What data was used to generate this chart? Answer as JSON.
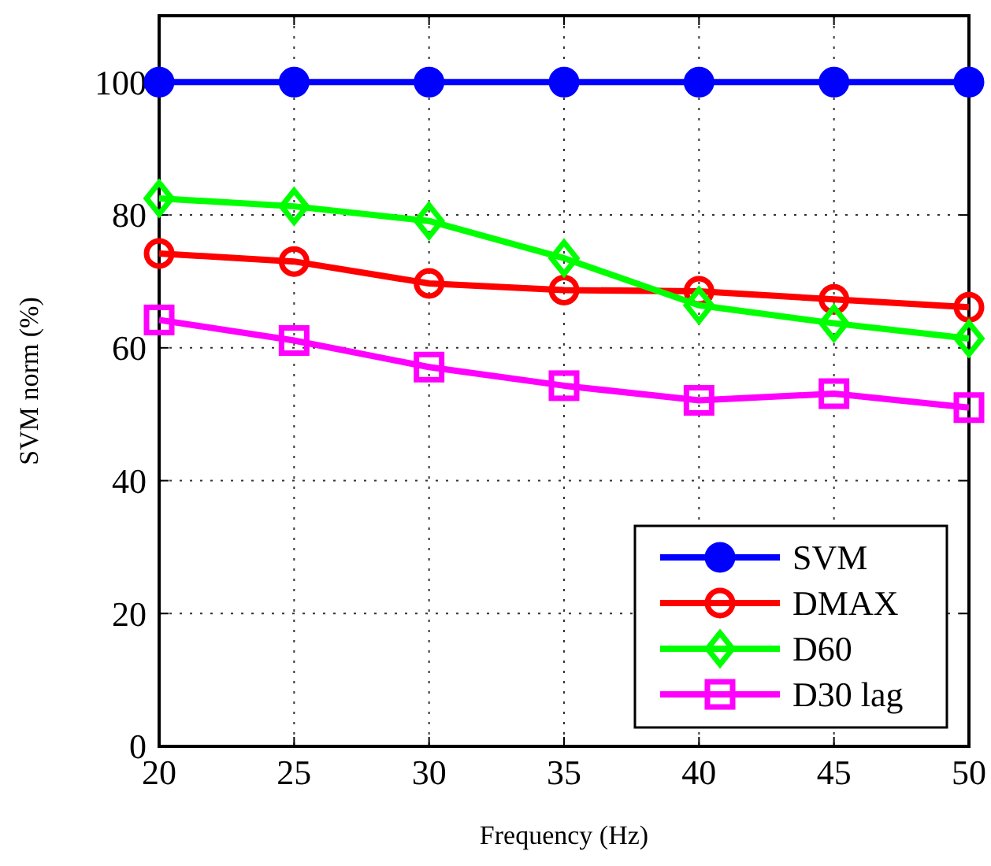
{
  "chart_data": {
    "type": "line",
    "xlabel": "Frequency (Hz)",
    "ylabel": "SVM norm (%)",
    "x": [
      20,
      25,
      30,
      35,
      40,
      45,
      50
    ],
    "series": [
      {
        "name": "SVM",
        "color": "#0000ff",
        "marker": "circle",
        "values": [
          100,
          100,
          100,
          100,
          100,
          100,
          100
        ]
      },
      {
        "name": "DMAX",
        "color": "#ff0000",
        "marker": "circle",
        "values": [
          74.2,
          73,
          69.7,
          68.7,
          68.5,
          67.3,
          66.1
        ]
      },
      {
        "name": "D60",
        "color": "#00ff00",
        "marker": "diamond",
        "values": [
          82.5,
          81.3,
          79.1,
          73.5,
          66.4,
          63.7,
          61.4
        ]
      },
      {
        "name": "D30 lag",
        "color": "#ff00ff",
        "marker": "square",
        "values": [
          64.2,
          61.1,
          57.1,
          54.3,
          52.1,
          53.1,
          51
        ]
      }
    ],
    "xlim": [
      20,
      50
    ],
    "xticks": [
      20,
      25,
      30,
      35,
      40,
      45,
      50
    ],
    "ylim": [
      0,
      110
    ],
    "yticks": [
      0,
      20,
      40,
      60,
      80,
      100
    ],
    "grid": true,
    "legend": "bottom right",
    "line_style": "solid"
  }
}
